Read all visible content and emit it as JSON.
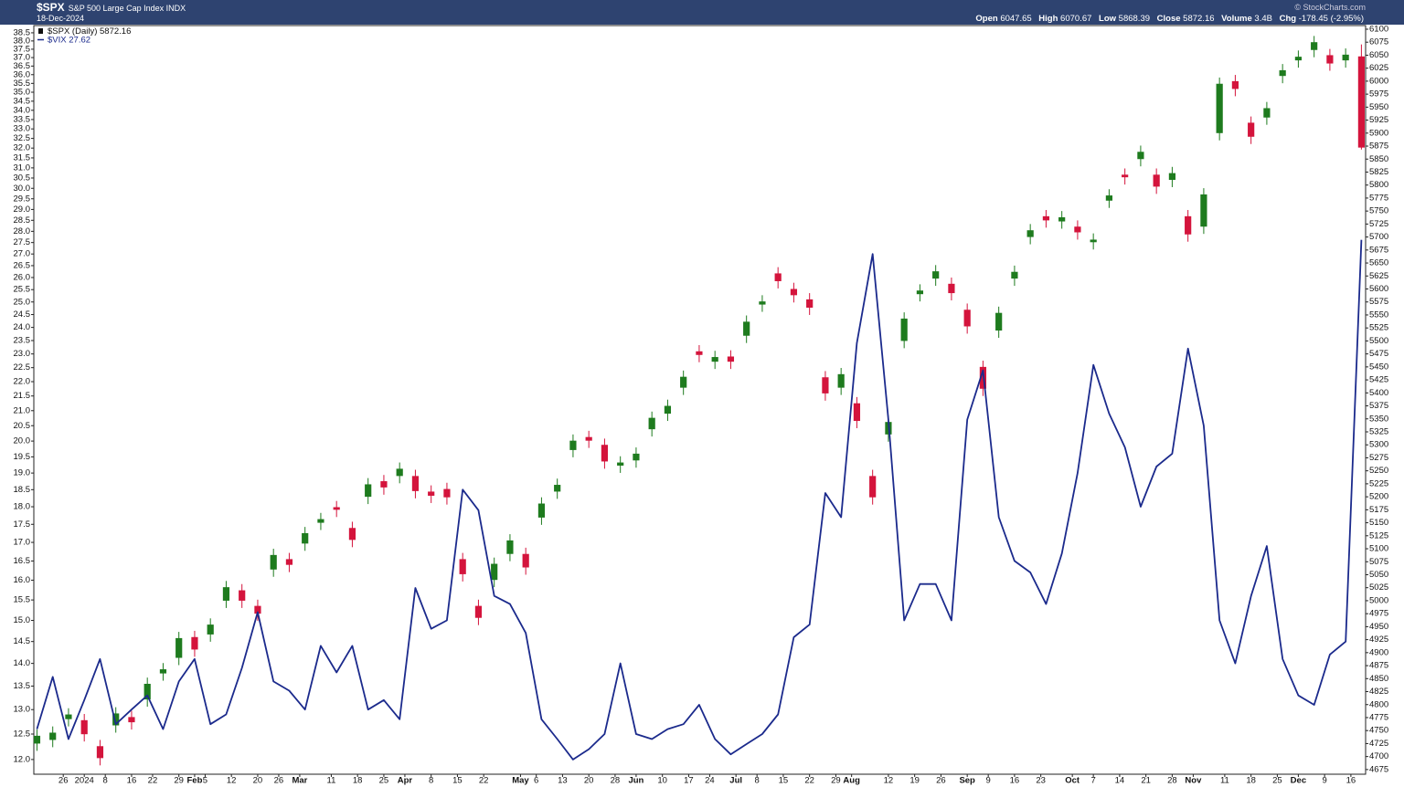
{
  "header": {
    "symbol": "$SPX",
    "name": "S&P 500 Large Cap Index",
    "exchange": "INDX",
    "date": "18-Dec-2024",
    "source": "© StockCharts.com",
    "labels": [
      "Open",
      "High",
      "Low",
      "Close",
      "Volume",
      "Chg"
    ],
    "volume": "3.4B",
    "change": "-178.45 (-2.95%)"
  },
  "chart_data": {
    "type": "candlestick",
    "log": true,
    "grid": false,
    "x": [
      0,
      3,
      6,
      9,
      12,
      15,
      18,
      21,
      24,
      27,
      30,
      33,
      36,
      39,
      42,
      45,
      48,
      51,
      54,
      57,
      60,
      63,
      66,
      69,
      72,
      75,
      78,
      81,
      84,
      87,
      90,
      93,
      96,
      99,
      102,
      105,
      108,
      111,
      114,
      117,
      120,
      123,
      126,
      129,
      132,
      135,
      138,
      141,
      144,
      147,
      150,
      153,
      156,
      159,
      162,
      165,
      168,
      171,
      174,
      177,
      180,
      183,
      186,
      189,
      192,
      195,
      198,
      201,
      204,
      207,
      210,
      213,
      216,
      219,
      222,
      225,
      228,
      231,
      234,
      237,
      240,
      243,
      246,
      249,
      252
    ],
    "xlim": [
      -0.6,
      252.8
    ],
    "xticks": [
      {
        "value": 5,
        "label": "26"
      },
      {
        "value": 9,
        "label": "2024"
      },
      {
        "value": 13,
        "label": "8"
      },
      {
        "value": 18,
        "label": "16"
      },
      {
        "value": 22,
        "label": "22"
      },
      {
        "value": 27,
        "label": "29"
      },
      {
        "value": 30,
        "label": "Feb"
      },
      {
        "value": 32,
        "label": "5"
      },
      {
        "value": 37,
        "label": "12"
      },
      {
        "value": 42,
        "label": "20"
      },
      {
        "value": 46,
        "label": "26"
      },
      {
        "value": 50,
        "label": "Mar"
      },
      {
        "value": 56,
        "label": "11"
      },
      {
        "value": 61,
        "label": "18"
      },
      {
        "value": 66,
        "label": "25"
      },
      {
        "value": 70,
        "label": "Apr"
      },
      {
        "value": 75,
        "label": "8"
      },
      {
        "value": 80,
        "label": "15"
      },
      {
        "value": 85,
        "label": "22"
      },
      {
        "value": 92,
        "label": "May"
      },
      {
        "value": 95,
        "label": "6"
      },
      {
        "value": 100,
        "label": "13"
      },
      {
        "value": 105,
        "label": "20"
      },
      {
        "value": 110,
        "label": "28"
      },
      {
        "value": 114,
        "label": "Jun"
      },
      {
        "value": 119,
        "label": "10"
      },
      {
        "value": 124,
        "label": "17"
      },
      {
        "value": 128,
        "label": "24"
      },
      {
        "value": 133,
        "label": "Jul"
      },
      {
        "value": 137,
        "label": "8"
      },
      {
        "value": 142,
        "label": "15"
      },
      {
        "value": 147,
        "label": "22"
      },
      {
        "value": 152,
        "label": "29"
      },
      {
        "value": 155,
        "label": "Aug"
      },
      {
        "value": 162,
        "label": "12"
      },
      {
        "value": 167,
        "label": "19"
      },
      {
        "value": 172,
        "label": "26"
      },
      {
        "value": 177,
        "label": "Sep"
      },
      {
        "value": 181,
        "label": "9"
      },
      {
        "value": 186,
        "label": "16"
      },
      {
        "value": 191,
        "label": "23"
      },
      {
        "value": 197,
        "label": "Oct"
      },
      {
        "value": 201,
        "label": "7"
      },
      {
        "value": 206,
        "label": "14"
      },
      {
        "value": 211,
        "label": "21"
      },
      {
        "value": 216,
        "label": "28"
      },
      {
        "value": 220,
        "label": "Nov"
      },
      {
        "value": 226,
        "label": "11"
      },
      {
        "value": 231,
        "label": "18"
      },
      {
        "value": 236,
        "label": "25"
      },
      {
        "value": 240,
        "label": "Dec"
      },
      {
        "value": 245,
        "label": "9"
      },
      {
        "value": 250,
        "label": "16"
      }
    ],
    "ylim": [
      11.72,
      38.95
    ],
    "yticks": [
      {
        "value": 12,
        "label": "12.0"
      },
      12.5,
      {
        "value": 13,
        "label": "13.0"
      },
      13.5,
      {
        "value": 14,
        "label": "14.0"
      },
      14.5,
      {
        "value": 15,
        "label": "15.0"
      },
      15.5,
      {
        "value": 16,
        "label": "16.0"
      },
      16.5,
      {
        "value": 17,
        "label": "17.0"
      },
      17.5,
      {
        "value": 18,
        "label": "18.0"
      },
      18.5,
      {
        "value": 19,
        "label": "19.0"
      },
      19.5,
      {
        "value": 20,
        "label": "20.0"
      },
      20.5,
      {
        "value": 21,
        "label": "21.0"
      },
      21.5,
      {
        "value": 22,
        "label": "22.0"
      },
      22.5,
      {
        "value": 23,
        "label": "23.0"
      },
      23.5,
      {
        "value": 24,
        "label": "24.0"
      },
      24.5,
      {
        "value": 25,
        "label": "25.0"
      },
      25.5,
      {
        "value": 26,
        "label": "26.0"
      },
      26.5,
      {
        "value": 27,
        "label": "27.0"
      },
      27.5,
      {
        "value": 28,
        "label": "28.0"
      },
      28.5,
      {
        "value": 29,
        "label": "29.0"
      },
      29.5,
      {
        "value": 30,
        "label": "30.0"
      },
      30.5,
      {
        "value": 31,
        "label": "31.0"
      },
      31.5,
      {
        "value": 32,
        "label": "32.0"
      },
      32.5,
      {
        "value": 33,
        "label": "33.0"
      },
      33.5,
      {
        "value": 34,
        "label": "34.0"
      },
      34.5,
      {
        "value": 35,
        "label": "35.0"
      },
      35.5,
      {
        "value": 36,
        "label": "36.0"
      },
      36.5,
      {
        "value": 37,
        "label": "37.0"
      },
      37.5,
      {
        "value": 38,
        "label": "38.0"
      },
      38.5
    ],
    "y2lim": [
      4666,
      6107
    ],
    "y2ticks": [
      4675,
      4700,
      4725,
      4750,
      4775,
      4800,
      4825,
      4850,
      4875,
      4900,
      4925,
      4950,
      4975,
      5000,
      5025,
      5050,
      5075,
      5100,
      5125,
      5150,
      5175,
      5200,
      5225,
      5250,
      5275,
      5300,
      5325,
      5350,
      5375,
      5400,
      5425,
      5450,
      5475,
      5500,
      5525,
      5550,
      5575,
      5600,
      5625,
      5650,
      5675,
      5700,
      5725,
      5750,
      5775,
      5800,
      5825,
      5850,
      5875,
      5900,
      5925,
      5950,
      5975,
      6000,
      6025,
      6050,
      6075,
      6100
    ],
    "series": [
      {
        "name": "$SPX (Daily)",
        "type": "candlestick",
        "axis": "y2",
        "up_color": "#1e7b1e",
        "down_color": "#d4143c",
        "open": [
          4725,
          4732,
          4772,
          4770,
          4720,
          4760,
          4776,
          4810,
          4860,
          4890,
          4930,
          4935,
          5000,
          5020,
          4990,
          5060,
          5080,
          5110,
          5150,
          5180,
          5140,
          5200,
          5230,
          5240,
          5240,
          5210,
          5215,
          5080,
          4990,
          5040,
          5090,
          5090,
          5160,
          5210,
          5290,
          5315,
          5300,
          5260,
          5270,
          5330,
          5360,
          5410,
          5480,
          5460,
          5470,
          5510,
          5570,
          5630,
          5600,
          5580,
          5430,
          5410,
          5380,
          5240,
          5320,
          5500,
          5590,
          5620,
          5610,
          5560,
          5450,
          5520,
          5620,
          5700,
          5740,
          5730,
          5720,
          5690,
          5770,
          5820,
          5850,
          5820,
          5810,
          5740,
          5720,
          5900,
          6000,
          5920,
          5930,
          6010,
          6040,
          6060,
          6050,
          6040,
          6047.65
        ],
        "high": [
          4752,
          4758,
          4793,
          4782,
          4732,
          4795,
          4788,
          4852,
          4880,
          4940,
          4942,
          4966,
          5038,
          5032,
          5002,
          5100,
          5092,
          5142,
          5169,
          5192,
          5152,
          5236,
          5242,
          5266,
          5252,
          5222,
          5227,
          5092,
          5002,
          5083,
          5128,
          5102,
          5199,
          5235,
          5320,
          5327,
          5312,
          5278,
          5295,
          5364,
          5387,
          5443,
          5492,
          5481,
          5482,
          5549,
          5588,
          5642,
          5612,
          5592,
          5442,
          5448,
          5392,
          5252,
          5356,
          5555,
          5609,
          5646,
          5622,
          5572,
          5462,
          5566,
          5645,
          5725,
          5752,
          5750,
          5732,
          5707,
          5792,
          5832,
          5876,
          5832,
          5835,
          5752,
          5794,
          6007,
          6012,
          5932,
          5960,
          6033,
          6059,
          6087,
          6062,
          6063,
          6070.67
        ],
        "low": [
          4711,
          4718,
          4758,
          4729,
          4683,
          4746,
          4752,
          4796,
          4846,
          4876,
          4892,
          4921,
          4986,
          4986,
          4961,
          5046,
          5055,
          5096,
          5136,
          5161,
          5103,
          5186,
          5204,
          5226,
          5197,
          5188,
          5185,
          5037,
          4953,
          5026,
          5076,
          5050,
          5146,
          5196,
          5276,
          5294,
          5254,
          5246,
          5256,
          5316,
          5346,
          5396,
          5459,
          5446,
          5446,
          5496,
          5556,
          5601,
          5574,
          5550,
          5385,
          5396,
          5332,
          5185,
          5306,
          5486,
          5576,
          5606,
          5578,
          5514,
          5394,
          5506,
          5606,
          5686,
          5718,
          5716,
          5695,
          5676,
          5756,
          5801,
          5836,
          5783,
          5796,
          5691,
          5706,
          5886,
          5971,
          5879,
          5916,
          5996,
          6026,
          6046,
          6020,
          6026,
          5868.39
        ],
        "close": [
          4740,
          4746,
          4781,
          4743,
          4697,
          4783,
          4766,
          4840,
          4868,
          4928,
          4906,
          4954,
          5026,
          5000,
          4975,
          5088,
          5069,
          5130,
          5157,
          5175,
          5117,
          5224,
          5218,
          5254,
          5211,
          5202,
          5199,
          5051,
          4967,
          5071,
          5116,
          5064,
          5187,
          5223,
          5308,
          5308,
          5268,
          5266,
          5283,
          5352,
          5375,
          5431,
          5473,
          5469,
          5460,
          5537,
          5576,
          5615,
          5588,
          5564,
          5399,
          5436,
          5346,
          5199,
          5344,
          5543,
          5597,
          5634,
          5592,
          5528,
          5408,
          5554,
          5633,
          5713,
          5732,
          5738,
          5709,
          5695,
          5780,
          5815,
          5864,
          5797,
          5823,
          5705,
          5782,
          5995,
          5985,
          5893,
          5948,
          6021,
          6047,
          6075,
          6034,
          6051,
          5872.16
        ]
      },
      {
        "name": "$VIX",
        "type": "line",
        "axis": "y",
        "color": "#1b2a8c",
        "values": [
          12.6,
          13.7,
          12.4,
          13.2,
          14.1,
          12.7,
          13.0,
          13.3,
          12.6,
          13.6,
          14.1,
          12.7,
          12.9,
          13.9,
          15.2,
          13.6,
          13.4,
          13.0,
          14.4,
          13.8,
          14.4,
          13.0,
          13.2,
          12.8,
          15.8,
          14.8,
          15.0,
          18.5,
          17.9,
          15.6,
          15.4,
          14.7,
          12.8,
          12.4,
          12.0,
          12.2,
          12.5,
          14.0,
          12.5,
          12.4,
          12.6,
          12.7,
          13.1,
          12.4,
          12.1,
          12.3,
          12.5,
          12.9,
          14.6,
          14.9,
          18.4,
          17.7,
          23.4,
          27.0,
          20.7,
          15.0,
          15.9,
          15.9,
          15.0,
          20.7,
          22.4,
          17.7,
          16.5,
          16.2,
          15.4,
          16.7,
          19.0,
          22.6,
          20.9,
          19.8,
          18.0,
          19.2,
          19.6,
          23.2,
          20.5,
          15.0,
          14.0,
          15.6,
          16.9,
          14.1,
          13.3,
          13.1,
          14.2,
          14.5,
          27.62
        ]
      }
    ]
  }
}
